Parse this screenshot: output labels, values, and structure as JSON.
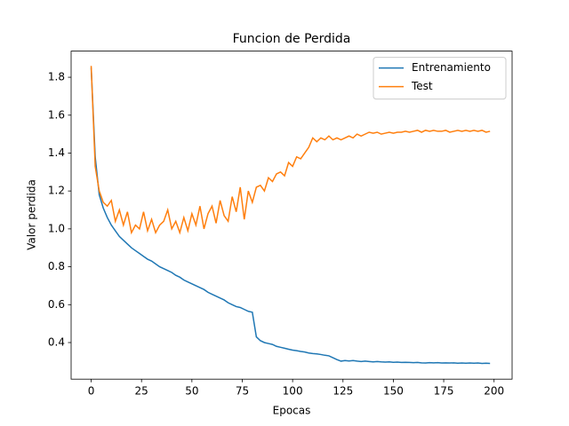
{
  "chart_data": {
    "type": "line",
    "title": "Funcion de Perdida",
    "xlabel": "Epocas",
    "ylabel": "Valor perdida",
    "x": [
      0,
      2,
      4,
      6,
      8,
      10,
      12,
      14,
      16,
      18,
      20,
      22,
      24,
      26,
      28,
      30,
      32,
      34,
      36,
      38,
      40,
      42,
      44,
      46,
      48,
      50,
      52,
      54,
      56,
      58,
      60,
      62,
      64,
      66,
      68,
      70,
      72,
      74,
      76,
      78,
      80,
      82,
      84,
      86,
      88,
      90,
      92,
      94,
      96,
      98,
      100,
      102,
      104,
      106,
      108,
      110,
      112,
      114,
      116,
      118,
      120,
      122,
      124,
      126,
      128,
      130,
      132,
      134,
      136,
      138,
      140,
      142,
      144,
      146,
      148,
      150,
      152,
      154,
      156,
      158,
      160,
      162,
      164,
      166,
      168,
      170,
      172,
      174,
      176,
      178,
      180,
      182,
      184,
      186,
      188,
      190,
      192,
      194,
      196,
      198
    ],
    "series": [
      {
        "name": "Entrenamiento",
        "color": "#1f77b4",
        "values": [
          1.85,
          1.38,
          1.18,
          1.11,
          1.06,
          1.02,
          0.99,
          0.96,
          0.94,
          0.92,
          0.9,
          0.885,
          0.87,
          0.855,
          0.84,
          0.83,
          0.815,
          0.8,
          0.79,
          0.78,
          0.77,
          0.755,
          0.745,
          0.73,
          0.72,
          0.71,
          0.7,
          0.69,
          0.68,
          0.665,
          0.655,
          0.645,
          0.635,
          0.625,
          0.61,
          0.6,
          0.59,
          0.585,
          0.575,
          0.565,
          0.56,
          0.43,
          0.41,
          0.4,
          0.395,
          0.39,
          0.38,
          0.375,
          0.37,
          0.365,
          0.36,
          0.357,
          0.353,
          0.35,
          0.345,
          0.342,
          0.34,
          0.337,
          0.333,
          0.33,
          0.32,
          0.31,
          0.302,
          0.305,
          0.303,
          0.305,
          0.302,
          0.3,
          0.302,
          0.3,
          0.298,
          0.3,
          0.298,
          0.297,
          0.298,
          0.296,
          0.297,
          0.295,
          0.296,
          0.295,
          0.294,
          0.295,
          0.293,
          0.292,
          0.294,
          0.293,
          0.294,
          0.292,
          0.293,
          0.292,
          0.293,
          0.291,
          0.292,
          0.291,
          0.292,
          0.291,
          0.292,
          0.29,
          0.291,
          0.29
        ]
      },
      {
        "name": "Test",
        "color": "#ff7f0e",
        "values": [
          1.86,
          1.33,
          1.2,
          1.14,
          1.12,
          1.15,
          1.04,
          1.1,
          1.02,
          1.09,
          0.98,
          1.02,
          1.0,
          1.09,
          0.99,
          1.05,
          0.98,
          1.02,
          1.04,
          1.1,
          1.0,
          1.04,
          0.98,
          1.06,
          0.99,
          1.08,
          1.02,
          1.12,
          1.0,
          1.08,
          1.12,
          1.03,
          1.15,
          1.07,
          1.04,
          1.17,
          1.09,
          1.22,
          1.05,
          1.2,
          1.14,
          1.22,
          1.23,
          1.2,
          1.27,
          1.25,
          1.29,
          1.3,
          1.28,
          1.35,
          1.33,
          1.38,
          1.37,
          1.4,
          1.43,
          1.48,
          1.46,
          1.48,
          1.47,
          1.49,
          1.47,
          1.48,
          1.47,
          1.48,
          1.49,
          1.48,
          1.5,
          1.49,
          1.5,
          1.51,
          1.505,
          1.51,
          1.5,
          1.505,
          1.51,
          1.505,
          1.51,
          1.51,
          1.515,
          1.51,
          1.515,
          1.52,
          1.51,
          1.52,
          1.515,
          1.52,
          1.515,
          1.515,
          1.52,
          1.51,
          1.515,
          1.52,
          1.515,
          1.52,
          1.515,
          1.52,
          1.515,
          1.52,
          1.51,
          1.515
        ]
      }
    ],
    "xlim": [
      -9.95,
      208.95
    ],
    "xticks": [
      0,
      25,
      50,
      75,
      100,
      125,
      150,
      175,
      200
    ],
    "ylim": [
      0.207,
      1.938
    ],
    "yticks": [
      0.4,
      0.6,
      0.8,
      {
        "value": 1,
        "label": "1.0"
      },
      1.2,
      1.4,
      1.6,
      1.8
    ],
    "legend": "upper right"
  }
}
